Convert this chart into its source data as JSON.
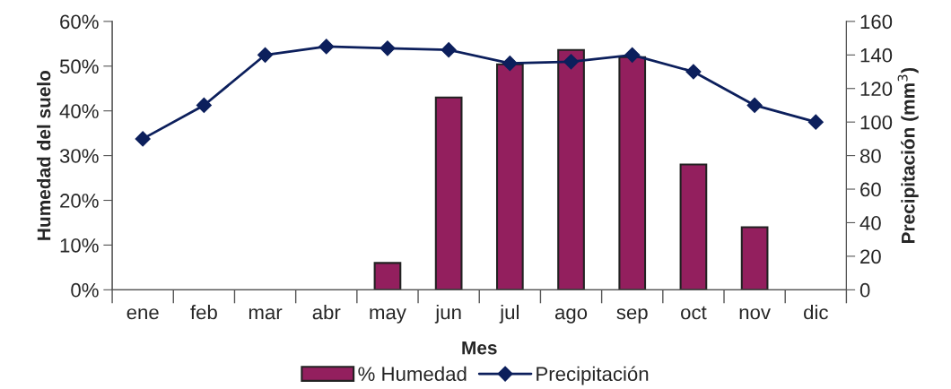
{
  "chart_data": {
    "type": "bar",
    "xlabel": "Mes",
    "ylabel": "Humedad del suelo",
    "y2label": "Precipitación (mm$^{3}$)",
    "categories": [
      "ene",
      "feb",
      "mar",
      "abr",
      "may",
      "jun",
      "jul",
      "ago",
      "sep",
      "oct",
      "nov",
      "dic"
    ],
    "series": [
      {
        "name": "% Humedad",
        "color": "#931f5e",
        "values": [
          null,
          null,
          null,
          null,
          6,
          43,
          50.4,
          53.6,
          52,
          28,
          14,
          null
        ]
      },
      {
        "name": "Precipitación",
        "type": "line",
        "axis": "y2",
        "color": "#0c1f5c",
        "marker": "diamond",
        "values": [
          90,
          110,
          140,
          145,
          144,
          143,
          135,
          136,
          140,
          130,
          110,
          100
        ]
      }
    ],
    "ylim": [
      0,
      60
    ],
    "yticks": [
      {
        "value": 0,
        "label": "0%"
      },
      {
        "value": 10,
        "label": "10%"
      },
      {
        "value": 20,
        "label": "20%"
      },
      {
        "value": 30,
        "label": "30%"
      },
      {
        "value": 40,
        "label": "40%"
      },
      {
        "value": 50,
        "label": "50%"
      },
      {
        "value": 60,
        "label": "60%"
      }
    ],
    "y2lim": [
      0,
      160
    ],
    "y2ticks": [
      0,
      20,
      40,
      60,
      80,
      100,
      120,
      140,
      160
    ],
    "grid": false,
    "legend": "bottom"
  }
}
